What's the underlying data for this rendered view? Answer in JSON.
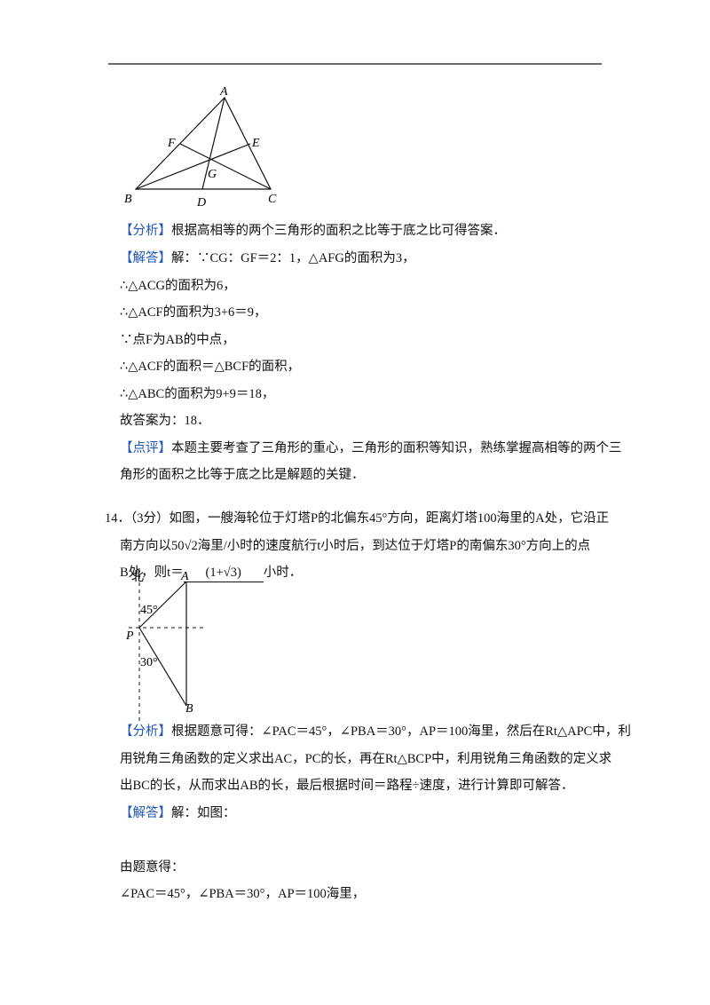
{
  "figure1": {
    "labels": [
      "A",
      "F",
      "E",
      "G",
      "B",
      "D",
      "C"
    ]
  },
  "solution13": [
    {
      "tag": "【分析】",
      "text": "根据高相等的两个三角形的面积之比等于底之比可得答案．"
    },
    {
      "tag": "【解答】",
      "text": "解：∵CG：GF＝2：1，△AFG的面积为3，"
    },
    {
      "text": "∴△ACG的面积为6，"
    },
    {
      "text": "∴△ACF的面积为3+6＝9，"
    },
    {
      "text": "∵点F为AB的中点，"
    },
    {
      "text": "∴△ACF的面积＝△BCF的面积，"
    },
    {
      "text": "∴△ABC的面积为9+9＝18，"
    },
    {
      "text": "故答案为：18．"
    },
    {
      "tag": "【点评】",
      "text": "本题主要考查了三角形的重心，三角形的面积等知识，熟练掌握高相等的两个三"
    },
    {
      "text": "角形的面积之比等于底之比是解题的关键．"
    }
  ],
  "question14": {
    "line1": "14．（3分）如图，一艘海轮位于灯塔P的北偏东45°方向，距离灯塔100海里的A处，它沿正",
    "line2": "南方向以50√2海里/小时的速度航行t小时后，到达位于灯塔P的南偏东30°方向上的点",
    "line3_before": "B处，则t＝",
    "answer": "(1+√3)",
    "line3_after": "小时．"
  },
  "figure2": {
    "labels": [
      "北",
      "A",
      "45°",
      "P",
      "30°",
      "B"
    ]
  },
  "solution14": [
    {
      "tag": "【分析】",
      "text": "根据题意可得：∠PAC＝45°，∠PBA＝30°，AP＝100海里，然后在Rt△APC中，利"
    },
    {
      "text": "用锐角三角函数的定义求出AC，PC的长，再在Rt△BCP中，利用锐角三角函数的定义求"
    },
    {
      "text": "出BC的长，从而求出AB的长，最后根据时间＝路程÷速度，进行计算即可解答．"
    },
    {
      "tag": "【解答】",
      "text": "解：如图："
    },
    {
      "text": "由题意得："
    },
    {
      "text": "∠PAC＝45°，∠PBA＝30°，AP＝100海里，"
    }
  ]
}
